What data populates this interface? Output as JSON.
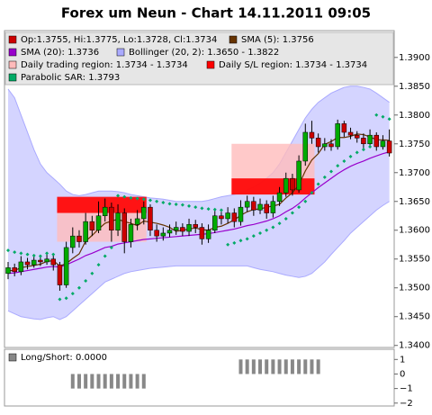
{
  "chart_data": [
    {
      "type": "candlestick",
      "title": "Forex um Neun - Chart 14.11.2011 09:05",
      "candles": {
        "name": "Op:1.3755, Hi:1.3775, Lo:1.3728, Cl:1.3734",
        "color": "#cc0000",
        "up_color": "#00aa00",
        "open": [
          1.3525,
          1.3535,
          1.3528,
          1.3545,
          1.354,
          1.3548,
          1.3545,
          1.355,
          1.354,
          1.3505,
          1.357,
          1.359,
          1.358,
          1.3615,
          1.36,
          1.3625,
          1.364,
          1.36,
          1.363,
          1.358,
          1.361,
          1.362,
          1.364,
          1.36,
          1.359,
          1.3595,
          1.36,
          1.3605,
          1.3598,
          1.361,
          1.3605,
          1.3585,
          1.36,
          1.3625,
          1.362,
          1.363,
          1.3615,
          1.364,
          1.365,
          1.3635,
          1.3645,
          1.363,
          1.365,
          1.3665,
          1.369,
          1.367,
          1.372,
          1.377,
          1.376,
          1.3745,
          1.375,
          1.3745,
          1.3785,
          1.377,
          1.3765,
          1.376,
          1.375,
          1.3765,
          1.3745,
          1.3755
        ],
        "high": [
          1.3545,
          1.3542,
          1.3555,
          1.3552,
          1.3558,
          1.3555,
          1.356,
          1.3558,
          1.3545,
          1.358,
          1.3605,
          1.36,
          1.363,
          1.3625,
          1.365,
          1.3655,
          1.3648,
          1.3645,
          1.3638,
          1.362,
          1.3635,
          1.365,
          1.3645,
          1.361,
          1.3605,
          1.361,
          1.3615,
          1.3612,
          1.362,
          1.3618,
          1.3612,
          1.361,
          1.3635,
          1.3632,
          1.364,
          1.3638,
          1.3652,
          1.366,
          1.3658,
          1.3655,
          1.3652,
          1.366,
          1.3675,
          1.37,
          1.3698,
          1.373,
          1.3785,
          1.379,
          1.3768,
          1.376,
          1.3758,
          1.3792,
          1.379,
          1.3778,
          1.3772,
          1.3768,
          1.3775,
          1.377,
          1.3765,
          1.3775
        ],
        "low": [
          1.3515,
          1.352,
          1.3522,
          1.3532,
          1.3535,
          1.3538,
          1.354,
          1.353,
          1.3495,
          1.35,
          1.356,
          1.357,
          1.3575,
          1.359,
          1.3595,
          1.3615,
          1.358,
          1.359,
          1.356,
          1.357,
          1.36,
          1.361,
          1.359,
          1.358,
          1.3582,
          1.3588,
          1.3592,
          1.359,
          1.359,
          1.3595,
          1.3575,
          1.3578,
          1.3595,
          1.361,
          1.3612,
          1.3605,
          1.3608,
          1.3632,
          1.3625,
          1.3628,
          1.362,
          1.3622,
          1.3642,
          1.3658,
          1.366,
          1.3665,
          1.3712,
          1.375,
          1.3735,
          1.3738,
          1.3738,
          1.374,
          1.3762,
          1.3758,
          1.3752,
          1.3742,
          1.3745,
          1.3738,
          1.374,
          1.3728
        ],
        "close": [
          1.3535,
          1.3528,
          1.3545,
          1.354,
          1.3548,
          1.3545,
          1.355,
          1.354,
          1.3505,
          1.357,
          1.359,
          1.358,
          1.3615,
          1.36,
          1.3625,
          1.364,
          1.36,
          1.363,
          1.358,
          1.361,
          1.362,
          1.364,
          1.36,
          1.359,
          1.3595,
          1.36,
          1.3605,
          1.3598,
          1.361,
          1.3605,
          1.3585,
          1.36,
          1.3625,
          1.362,
          1.363,
          1.3615,
          1.364,
          1.365,
          1.3635,
          1.3645,
          1.363,
          1.365,
          1.3665,
          1.369,
          1.367,
          1.372,
          1.377,
          1.376,
          1.3745,
          1.375,
          1.3745,
          1.3785,
          1.377,
          1.3765,
          1.376,
          1.375,
          1.3765,
          1.3745,
          1.3755,
          1.3734
        ]
      },
      "sma5": {
        "name": "SMA (5): 1.3756",
        "color": "#663300",
        "values": [
          1.353,
          1.353,
          1.3535,
          1.3537,
          1.3539,
          1.3541,
          1.3546,
          1.3547,
          1.3538,
          1.3542,
          1.3551,
          1.3559,
          1.3581,
          1.3591,
          1.3602,
          1.3612,
          1.3616,
          1.3619,
          1.3615,
          1.3612,
          1.3608,
          1.3616,
          1.3614,
          1.3612,
          1.3609,
          1.3605,
          1.3598,
          1.36,
          1.3602,
          1.3604,
          1.3601,
          1.36,
          1.3605,
          1.3607,
          1.3612,
          1.3618,
          1.3626,
          1.3632,
          1.3636,
          1.3637,
          1.364,
          1.3642,
          1.3645,
          1.3656,
          1.3665,
          1.3679,
          1.3703,
          1.3722,
          1.3733,
          1.3749,
          1.3754,
          1.3761,
          1.3761,
          1.3763,
          1.3767,
          1.3766,
          1.3762,
          1.3757,
          1.3757,
          1.3756
        ]
      },
      "sma20": {
        "name": "SMA (20): 1.3736",
        "color": "#9900cc",
        "values": [
          1.3525,
          1.3526,
          1.3528,
          1.353,
          1.3532,
          1.3534,
          1.3536,
          1.3537,
          1.3536,
          1.354,
          1.3545,
          1.355,
          1.3556,
          1.356,
          1.3565,
          1.357,
          1.3572,
          1.3576,
          1.3578,
          1.358,
          1.3582,
          1.3584,
          1.3585,
          1.3586,
          1.3587,
          1.3588,
          1.3589,
          1.359,
          1.3591,
          1.3592,
          1.3593,
          1.3594,
          1.3596,
          1.3598,
          1.36,
          1.3602,
          1.3605,
          1.3608,
          1.361,
          1.3613,
          1.3616,
          1.362,
          1.3625,
          1.3632,
          1.3638,
          1.3646,
          1.3656,
          1.3665,
          1.3674,
          1.3682,
          1.369,
          1.3698,
          1.3705,
          1.3711,
          1.3716,
          1.372,
          1.3725,
          1.3729,
          1.3733,
          1.3736
        ]
      },
      "bollinger": {
        "name": "Bollinger (20, 2): 1.3650 - 1.3822",
        "color": "#aaaaff",
        "fill": "#ccccff",
        "upper": [
          1.3845,
          1.383,
          1.38,
          1.377,
          1.374,
          1.3715,
          1.37,
          1.369,
          1.368,
          1.3668,
          1.3662,
          1.366,
          1.3662,
          1.3665,
          1.3668,
          1.3668,
          1.3668,
          1.3667,
          1.3665,
          1.3662,
          1.366,
          1.3658,
          1.3656,
          1.3655,
          1.3654,
          1.3652,
          1.365,
          1.365,
          1.365,
          1.365,
          1.365,
          1.3652,
          1.3655,
          1.3658,
          1.366,
          1.3662,
          1.3665,
          1.367,
          1.3675,
          1.3682,
          1.369,
          1.37,
          1.3715,
          1.3735,
          1.3755,
          1.3775,
          1.3795,
          1.381,
          1.3822,
          1.383,
          1.3838,
          1.3843,
          1.3848,
          1.385,
          1.385,
          1.3848,
          1.3845,
          1.3838,
          1.383,
          1.3822
        ],
        "lower": [
          1.346,
          1.3455,
          1.345,
          1.3448,
          1.3446,
          1.3445,
          1.3448,
          1.345,
          1.3445,
          1.345,
          1.346,
          1.347,
          1.348,
          1.349,
          1.35,
          1.351,
          1.3515,
          1.352,
          1.3525,
          1.3528,
          1.353,
          1.3532,
          1.3534,
          1.3535,
          1.3536,
          1.3537,
          1.3538,
          1.3538,
          1.3538,
          1.3538,
          1.3538,
          1.3538,
          1.3538,
          1.3538,
          1.3538,
          1.3538,
          1.3538,
          1.3538,
          1.3535,
          1.3532,
          1.353,
          1.3528,
          1.3525,
          1.3522,
          1.352,
          1.3518,
          1.352,
          1.3525,
          1.3535,
          1.3545,
          1.3558,
          1.357,
          1.3582,
          1.3595,
          1.3605,
          1.3615,
          1.3625,
          1.3635,
          1.3643,
          1.365
        ]
      },
      "trading_region": {
        "name": "Daily trading region: 1.3734 - 1.3734",
        "color": "#ffbbbb",
        "regions": [
          {
            "start": 8,
            "end": 21,
            "low": 1.358,
            "high": 1.3655
          },
          {
            "start": 35,
            "end": 47,
            "low": 1.3662,
            "high": 1.375
          }
        ]
      },
      "sl_region": {
        "name": "Daily S/L region: 1.3734 - 1.3734",
        "color": "#ff0000",
        "regions": [
          {
            "start": 8,
            "end": 21,
            "low": 1.363,
            "high": 1.3658
          },
          {
            "start": 35,
            "end": 47,
            "low": 1.3662,
            "high": 1.369
          }
        ]
      },
      "sar": {
        "name": "Parabolic SAR: 1.3793",
        "color": "#00aa66",
        "values": [
          1.3565,
          1.3562,
          1.356,
          1.3558,
          1.3556,
          1.3555,
          1.356,
          1.3558,
          1.348,
          1.3482,
          1.349,
          1.35,
          1.3512,
          1.3525,
          1.354,
          1.3555,
          1.357,
          1.366,
          1.3658,
          1.3656,
          1.3655,
          1.3654,
          1.3652,
          1.365,
          1.3648,
          1.3646,
          1.3645,
          1.3644,
          1.3642,
          1.364,
          1.3638,
          1.3637,
          1.3636,
          1.3635,
          1.3575,
          1.3578,
          1.3582,
          1.3585,
          1.359,
          1.3595,
          1.36,
          1.3605,
          1.3612,
          1.362,
          1.363,
          1.364,
          1.365,
          1.3665,
          1.368,
          1.3692,
          1.3702,
          1.3712,
          1.372,
          1.3728,
          1.3735,
          1.374,
          1.3745,
          1.38,
          1.3797,
          1.3793
        ]
      },
      "ylim": [
        1.3398,
        1.3945
      ],
      "yticks": [
        {
          "value": 1.34,
          "label": "1.3400"
        },
        {
          "value": 1.345,
          "label": "1.3450"
        },
        {
          "value": 1.35,
          "label": "1.3500"
        },
        {
          "value": 1.355,
          "label": "1.3550"
        },
        {
          "value": 1.36,
          "label": "1.3600"
        },
        {
          "value": 1.365,
          "label": "1.3650"
        },
        {
          "value": 1.37,
          "label": "1.3700"
        },
        {
          "value": 1.375,
          "label": "1.3750"
        },
        {
          "value": 1.38,
          "label": "1.3800"
        },
        {
          "value": 1.385,
          "label": "1.3850"
        },
        {
          "value": 1.39,
          "label": "1.3900"
        }
      ]
    },
    {
      "type": "bar",
      "name": "Long/Short: 0.0000",
      "color": "#888888",
      "values": [
        0,
        0,
        0,
        0,
        0,
        0,
        0,
        0,
        0,
        0,
        -1,
        -1,
        -1,
        -1,
        -1,
        -1,
        -1,
        -1,
        -1,
        -1,
        -1,
        -1,
        0,
        0,
        0,
        0,
        0,
        0,
        0,
        0,
        0,
        0,
        0,
        0,
        0,
        0,
        1,
        1,
        1,
        1,
        1,
        1,
        1,
        1,
        1,
        1,
        1,
        1,
        1,
        0,
        0,
        0,
        0,
        0,
        0,
        0,
        0,
        0,
        0,
        0
      ],
      "ylim": [
        -2.2,
        1.7
      ],
      "yticks": [
        1,
        0,
        {
          "value": -1,
          "label": "−1"
        },
        {
          "value": -2,
          "label": "−2"
        }
      ]
    }
  ]
}
